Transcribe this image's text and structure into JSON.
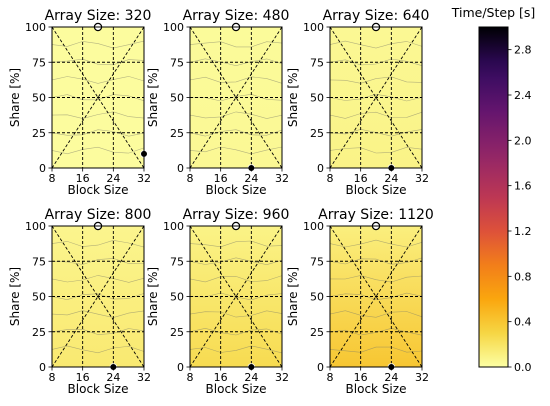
{
  "chart_data": {
    "type": "heatmap",
    "xlabel": "Block Size",
    "ylabel": "Share [%]",
    "xlim": [
      8,
      32
    ],
    "ylim": [
      0,
      100
    ],
    "x_ticks": [
      8,
      16,
      24,
      32
    ],
    "y_ticks": [
      0,
      25,
      50,
      75,
      100
    ],
    "colorbar": {
      "title": "Time/Step [s]",
      "range": [
        0.0,
        3.0
      ],
      "ticks": [
        0.0,
        0.4,
        0.8,
        1.2,
        1.6,
        2.0,
        2.4,
        2.8
      ],
      "tick_labels": [
        "0.0",
        "0.4",
        "0.8",
        "1.2",
        "1.6",
        "2.0",
        "2.4",
        "2.8"
      ],
      "colormap": "inferno_r"
    },
    "grid": true,
    "panels": [
      {
        "title": "Array Size: 320",
        "time_bottom": 0.02,
        "time_top": 0.02,
        "marker_min": [
          20,
          100
        ],
        "marker_max": [
          32,
          10
        ]
      },
      {
        "title": "Array Size: 480",
        "time_bottom": 0.05,
        "time_top": 0.03,
        "marker_min": [
          20,
          100
        ],
        "marker_max": [
          24,
          0
        ]
      },
      {
        "title": "Array Size: 640",
        "time_bottom": 0.09,
        "time_top": 0.05,
        "marker_min": [
          20,
          100
        ],
        "marker_max": [
          24,
          0
        ]
      },
      {
        "title": "Array Size: 800",
        "time_bottom": 0.16,
        "time_top": 0.07,
        "marker_min": [
          20,
          100
        ],
        "marker_max": [
          24,
          0
        ]
      },
      {
        "title": "Array Size: 960",
        "time_bottom": 0.26,
        "time_top": 0.09,
        "marker_min": [
          20,
          100
        ],
        "marker_max": [
          24,
          0
        ]
      },
      {
        "title": "Array Size: 1120",
        "time_bottom": 0.4,
        "time_top": 0.12,
        "marker_min": [
          20,
          100
        ],
        "marker_max": [
          24,
          0
        ]
      }
    ]
  }
}
